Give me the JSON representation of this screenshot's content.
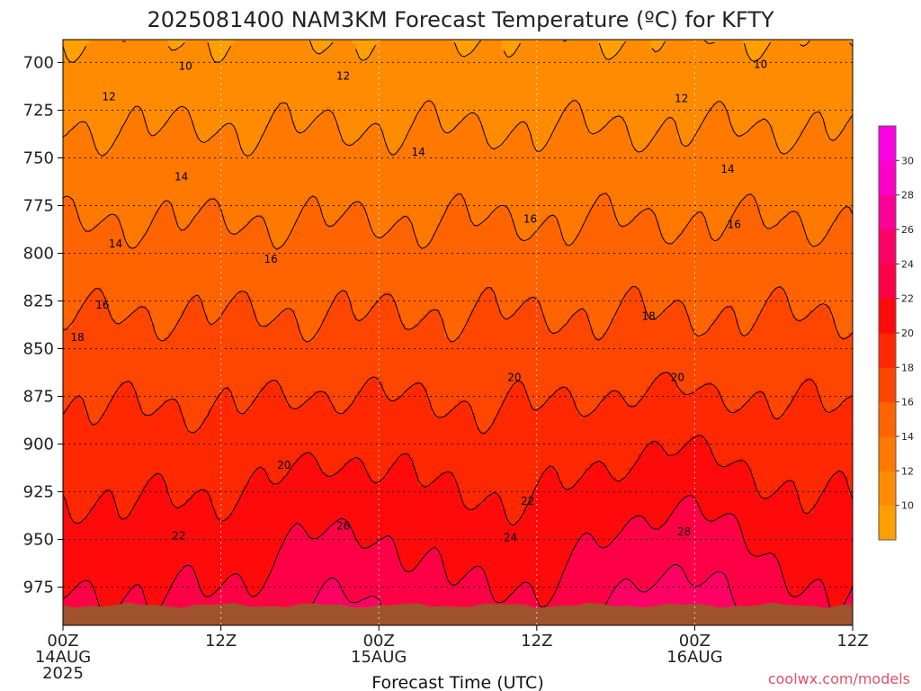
{
  "chart_data": {
    "type": "heatmap",
    "title": "2025081400 NAM3KM Forecast Temperature (ºC) for KFTY",
    "xlabel": "Forecast Time (UTC)",
    "ylabel": "",
    "x_ticks": [
      {
        "hours": 0,
        "label": "00Z",
        "sub1": "14AUG",
        "sub2": "2025"
      },
      {
        "hours": 12,
        "label": "12Z",
        "sub1": "",
        "sub2": ""
      },
      {
        "hours": 24,
        "label": "00Z",
        "sub1": "15AUG",
        "sub2": ""
      },
      {
        "hours": 36,
        "label": "12Z",
        "sub1": "",
        "sub2": ""
      },
      {
        "hours": 48,
        "label": "00Z",
        "sub1": "16AUG",
        "sub2": ""
      },
      {
        "hours": 60,
        "label": "12Z",
        "sub1": "",
        "sub2": ""
      }
    ],
    "xlim": [
      0,
      60
    ],
    "y_ticks": [
      700,
      725,
      750,
      775,
      800,
      825,
      850,
      875,
      900,
      925,
      950,
      975
    ],
    "ylim": [
      688,
      995
    ],
    "y_reversed": true,
    "grid": true,
    "colorbar": {
      "levels": [
        8,
        10,
        12,
        14,
        16,
        18,
        20,
        22,
        24,
        26,
        28,
        30,
        32
      ],
      "tick_labels": [
        10,
        12,
        14,
        16,
        18,
        20,
        22,
        24,
        26,
        28,
        30
      ],
      "colors": [
        "#ffa000",
        "#ff8c00",
        "#ff7800",
        "#ff6400",
        "#ff4600",
        "#ff2800",
        "#ff0a0a",
        "#ff0046",
        "#ff0064",
        "#ff0096",
        "#ff00c8",
        "#ff00e6"
      ]
    },
    "contour_labels": [
      {
        "hours": 9.3,
        "p": 702,
        "text": "10"
      },
      {
        "hours": 53,
        "p": 701,
        "text": "10"
      },
      {
        "hours": 3.5,
        "p": 718,
        "text": "12"
      },
      {
        "hours": 21.3,
        "p": 707,
        "text": "12"
      },
      {
        "hours": 47,
        "p": 719,
        "text": "12"
      },
      {
        "hours": 9,
        "p": 760,
        "text": "14"
      },
      {
        "hours": 27,
        "p": 747,
        "text": "14"
      },
      {
        "hours": 50.5,
        "p": 756,
        "text": "14"
      },
      {
        "hours": 4,
        "p": 795,
        "text": "14"
      },
      {
        "hours": 35.5,
        "p": 782,
        "text": "16"
      },
      {
        "hours": 51,
        "p": 785,
        "text": "16"
      },
      {
        "hours": 15.8,
        "p": 803,
        "text": "16"
      },
      {
        "hours": 3,
        "p": 827,
        "text": "16"
      },
      {
        "hours": 1.1,
        "p": 844,
        "text": "18"
      },
      {
        "hours": 44.5,
        "p": 833,
        "text": "18"
      },
      {
        "hours": 46.7,
        "p": 865,
        "text": "20"
      },
      {
        "hours": 34.3,
        "p": 865,
        "text": "20"
      },
      {
        "hours": 16.8,
        "p": 911,
        "text": "20"
      },
      {
        "hours": 35.3,
        "p": 930,
        "text": "22"
      },
      {
        "hours": 8.8,
        "p": 948,
        "text": "22"
      },
      {
        "hours": 21.3,
        "p": 943,
        "text": "26"
      },
      {
        "hours": 34,
        "p": 949,
        "text": "24"
      },
      {
        "hours": 47.2,
        "p": 946,
        "text": "28"
      }
    ]
  },
  "credit": "coolwx.com/models"
}
